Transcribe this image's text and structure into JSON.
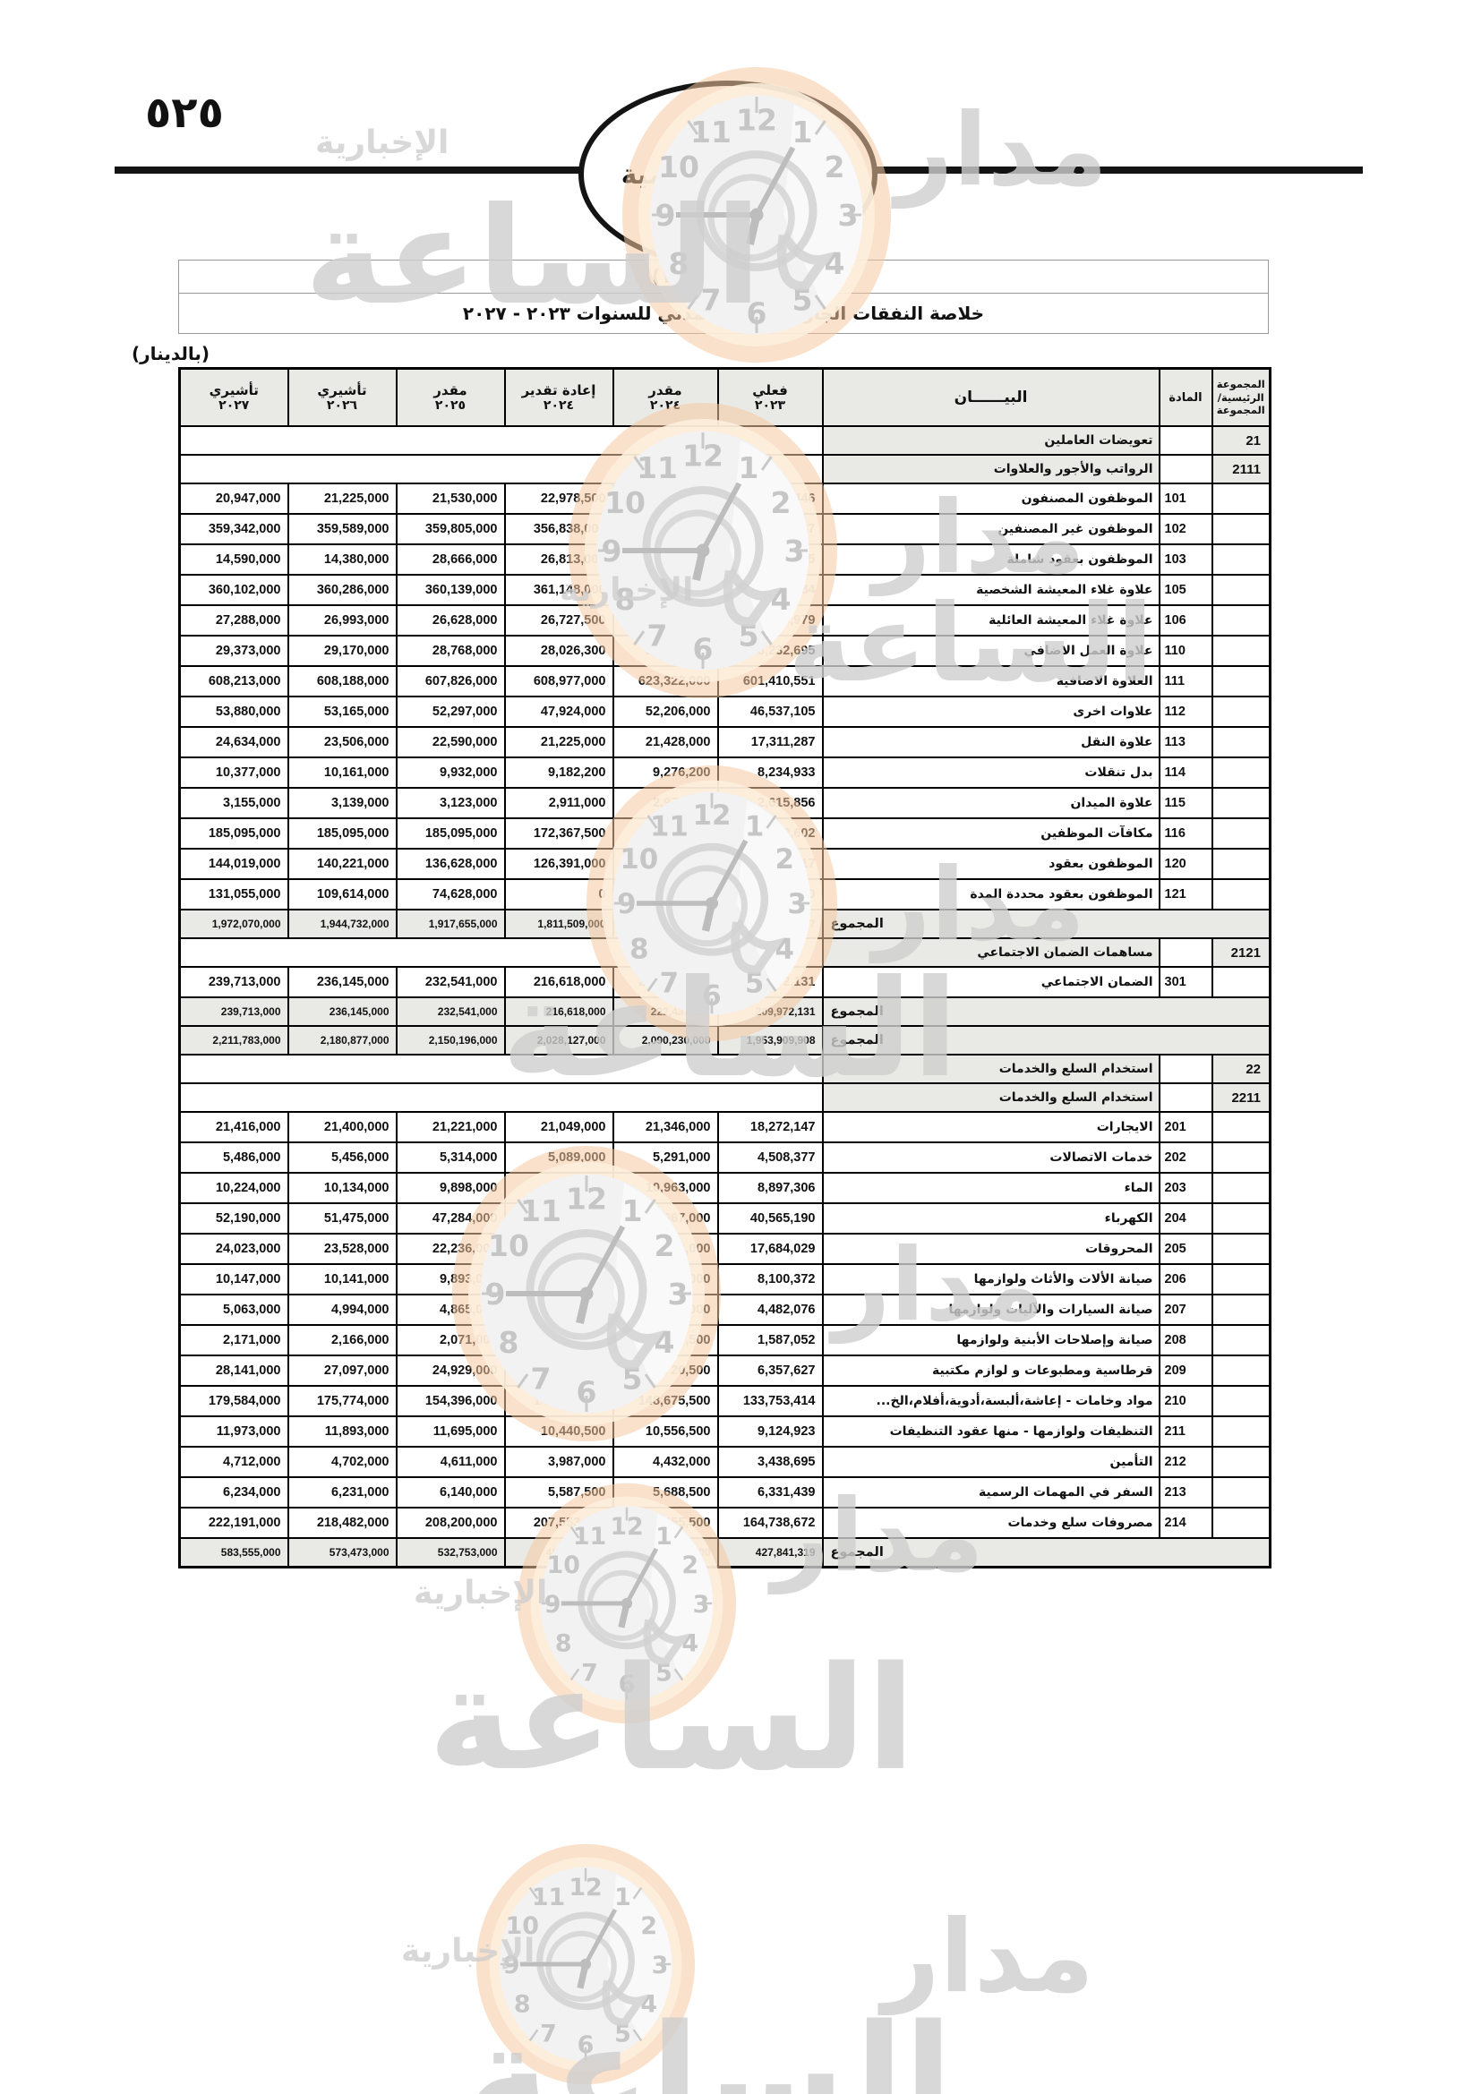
{
  "page": {
    "number": "٥٢٥"
  },
  "masthead": {
    "title": "الجريدة الرسمية"
  },
  "watermark": {
    "brand_word1": "مدار",
    "brand_word2": "الساعة",
    "tagline": "الإخبارية",
    "ring_color": "#f5c9a0",
    "face_color": "#f2f2f2",
    "glyph_color": "#c6c6c6"
  },
  "table": {
    "title": "جدول رقم (١٦)",
    "subtitle": "خلاصة النفقات الجارية للجهاز المدني للسنوات ٢٠٢٣ - ٢٠٢٧",
    "currency_note": "(بالدينار)",
    "header": {
      "group_lines": [
        "المجموعة",
        "الرئيسية/",
        "المجموعة"
      ],
      "article": "المادة",
      "description": "البيــــــان",
      "value_columns": [
        {
          "label": "تأشيري",
          "year": "٢٠٢٧"
        },
        {
          "label": "تأشيري",
          "year": "٢٠٢٦"
        },
        {
          "label": "مقدر",
          "year": "٢٠٢٥"
        },
        {
          "label": "إعادة تقدير",
          "year": "٢٠٢٤"
        },
        {
          "label": "مقدر",
          "year": "٢٠٢٤"
        },
        {
          "label": "فعلي",
          "year": "٢٠٢٣"
        }
      ]
    },
    "total_label": "المجموع",
    "rows": [
      {
        "type": "section",
        "group": "21",
        "label": "تعويضات العاملين"
      },
      {
        "type": "section",
        "group": "2111",
        "label": "الرواتب والأجور والعلاوات"
      },
      {
        "type": "item",
        "article": "101",
        "label": "الموظفون المصنفون",
        "values": [
          "20,947,000",
          "21,225,000",
          "21,530,000",
          "22,978,500",
          "25,186,000",
          "26,205,446"
        ]
      },
      {
        "type": "item",
        "article": "102",
        "label": "الموظفون غير المصنفين",
        "values": [
          "359,342,000",
          "359,589,000",
          "359,805,000",
          "356,838,000",
          "368,506,000",
          "358,608,137"
        ]
      },
      {
        "type": "item",
        "article": "103",
        "label": "الموظفون بعقود شاملة",
        "values": [
          "14,590,000",
          "14,380,000",
          "28,666,000",
          "26,813,000",
          "30,494,000",
          "23,067,685"
        ]
      },
      {
        "type": "item",
        "article": "105",
        "label": "علاوة غلاء المعيشة الشخصية",
        "values": [
          "360,102,000",
          "360,286,000",
          "360,139,000",
          "361,148,000",
          "372,637,000",
          "350,376,384"
        ]
      },
      {
        "type": "item",
        "article": "106",
        "label": "علاوة غلاء المعيشة العائلية",
        "values": [
          "27,288,000",
          "26,993,000",
          "26,628,000",
          "26,727,500",
          "28,361,000",
          "26,208,979"
        ]
      },
      {
        "type": "item",
        "article": "110",
        "label": "علاوة العمل الاضافي",
        "values": [
          "29,373,000",
          "29,170,000",
          "28,768,000",
          "28,026,300",
          "28,042,300",
          "23,232,695"
        ]
      },
      {
        "type": "item",
        "article": "111",
        "label": "العلاوة الاضافية",
        "values": [
          "608,213,000",
          "608,188,000",
          "607,826,000",
          "608,977,000",
          "623,322,000",
          "601,410,551"
        ]
      },
      {
        "type": "item",
        "article": "112",
        "label": "علاوات اخرى",
        "values": [
          "53,880,000",
          "53,165,000",
          "52,297,000",
          "47,924,000",
          "52,206,000",
          "46,537,105"
        ]
      },
      {
        "type": "item",
        "article": "113",
        "label": "علاوة النقل",
        "values": [
          "24,634,000",
          "23,506,000",
          "22,590,000",
          "21,225,000",
          "21,428,000",
          "17,311,287"
        ]
      },
      {
        "type": "item",
        "article": "114",
        "label": "بدل تنقلات",
        "values": [
          "10,377,000",
          "10,161,000",
          "9,932,000",
          "9,182,200",
          "9,276,200",
          "8,234,933"
        ]
      },
      {
        "type": "item",
        "article": "115",
        "label": "علاوة الميدان",
        "values": [
          "3,155,000",
          "3,139,000",
          "3,123,000",
          "2,911,000",
          "2,976,000",
          "2,615,856"
        ]
      },
      {
        "type": "item",
        "article": "116",
        "label": "مكافآت الموظفين",
        "values": [
          "185,095,000",
          "185,095,000",
          "185,095,000",
          "172,367,500",
          "173,122,500",
          "146,472,602"
        ]
      },
      {
        "type": "item",
        "article": "120",
        "label": "الموظفون بعقود",
        "values": [
          "144,019,000",
          "140,221,000",
          "136,628,000",
          "126,391,000",
          "132,236,000",
          "113,656,117"
        ]
      },
      {
        "type": "item",
        "article": "121",
        "label": "الموظفون بعقود محددة المدة",
        "values": [
          "131,055,000",
          "109,614,000",
          "74,628,000",
          "0",
          "0",
          "0"
        ]
      },
      {
        "type": "total",
        "values": [
          "1,972,070,000",
          "1,944,732,000",
          "1,917,655,000",
          "1,811,509,000",
          "1,867,793,000",
          "1,743,937,777"
        ]
      },
      {
        "type": "section",
        "group": "2121",
        "label": "مساهمات الضمان الاجتماعي"
      },
      {
        "type": "item",
        "article": "301",
        "label": "الضمان الاجتماعي",
        "values": [
          "239,713,000",
          "236,145,000",
          "232,541,000",
          "216,618,000",
          "222,437,000",
          "209,972,131"
        ]
      },
      {
        "type": "total",
        "values": [
          "239,713,000",
          "236,145,000",
          "232,541,000",
          "216,618,000",
          "222,437,000",
          "209,972,131"
        ]
      },
      {
        "type": "total",
        "values": [
          "2,211,783,000",
          "2,180,877,000",
          "2,150,196,000",
          "2,028,127,000",
          "2,090,230,000",
          "1,953,909,908"
        ]
      },
      {
        "type": "section",
        "group": "22",
        "label": "استخدام السلع والخدمات"
      },
      {
        "type": "section",
        "group": "2211",
        "label": "استخدام السلع والخدمات"
      },
      {
        "type": "item",
        "article": "201",
        "label": "الايجارات",
        "values": [
          "21,416,000",
          "21,400,000",
          "21,221,000",
          "21,049,000",
          "21,346,000",
          "18,272,147"
        ]
      },
      {
        "type": "item",
        "article": "202",
        "label": "خدمات الاتصالات",
        "values": [
          "5,486,000",
          "5,456,000",
          "5,314,000",
          "5,089,000",
          "5,291,000",
          "4,508,377"
        ]
      },
      {
        "type": "item",
        "article": "203",
        "label": "الماء",
        "values": [
          "10,224,000",
          "10,134,000",
          "9,898,000",
          "9,611,000",
          "10,963,000",
          "8,897,306"
        ]
      },
      {
        "type": "item",
        "article": "204",
        "label": "الكهرباء",
        "values": [
          "52,190,000",
          "51,475,000",
          "47,284,000",
          "46,537,000",
          "47,667,000",
          "40,565,190"
        ]
      },
      {
        "type": "item",
        "article": "205",
        "label": "المحروقات",
        "values": [
          "24,023,000",
          "23,528,000",
          "22,236,000",
          "21,126,000",
          "21,746,000",
          "17,684,029"
        ]
      },
      {
        "type": "item",
        "article": "206",
        "label": "صيانة الألات والأثاث ولوازمها",
        "values": [
          "10,147,000",
          "10,141,000",
          "9,893,000",
          "9,511,000",
          "9,913,000",
          "8,100,372"
        ]
      },
      {
        "type": "item",
        "article": "207",
        "label": "صيانة السيارات والآليات ولوازمها",
        "values": [
          "5,063,000",
          "4,994,000",
          "4,865,000",
          "4,755,000",
          "4,819,000",
          "4,482,076"
        ]
      },
      {
        "type": "item",
        "article": "208",
        "label": "صيانة وإصلاحات الأبنية ولوازمها",
        "values": [
          "2,171,000",
          "2,166,000",
          "2,071,000",
          "2,166,500",
          "2,357,500",
          "1,587,052"
        ]
      },
      {
        "type": "item",
        "article": "209",
        "label": "قرطاسية ومطبوعات و لوازم مكتبية",
        "values": [
          "28,141,000",
          "27,097,000",
          "24,929,000",
          "7,439,500",
          "7,720,500",
          "6,357,627"
        ]
      },
      {
        "type": "item",
        "article": "210",
        "label": "مواد وخامات - إعاشة،ألبسة،أدوية،أفلام،الخ...",
        "values": [
          "179,584,000",
          "175,774,000",
          "154,396,000",
          "144,480,500",
          "148,675,500",
          "133,753,414"
        ]
      },
      {
        "type": "item",
        "article": "211",
        "label": "التنظيفات ولوازمها - منها عقود التنظيفات",
        "values": [
          "11,973,000",
          "11,893,000",
          "11,695,000",
          "10,440,500",
          "10,556,500",
          "9,124,923"
        ]
      },
      {
        "type": "item",
        "article": "212",
        "label": "التأمين",
        "values": [
          "4,712,000",
          "4,702,000",
          "4,611,000",
          "3,987,000",
          "4,432,000",
          "3,438,695"
        ]
      },
      {
        "type": "item",
        "article": "213",
        "label": "السفر في المهمات الرسمية",
        "values": [
          "6,234,000",
          "6,231,000",
          "6,140,000",
          "5,587,500",
          "5,688,500",
          "6,331,439"
        ]
      },
      {
        "type": "item",
        "article": "214",
        "label": "مصروفات سلع وخدمات",
        "values": [
          "222,191,000",
          "218,482,000",
          "208,200,000",
          "207,553,500",
          "223,855,500",
          "164,738,672"
        ]
      },
      {
        "type": "total",
        "values": [
          "583,555,000",
          "573,473,000",
          "532,753,000",
          "499,333,000",
          "525,031,000",
          "427,841,319"
        ]
      }
    ]
  }
}
